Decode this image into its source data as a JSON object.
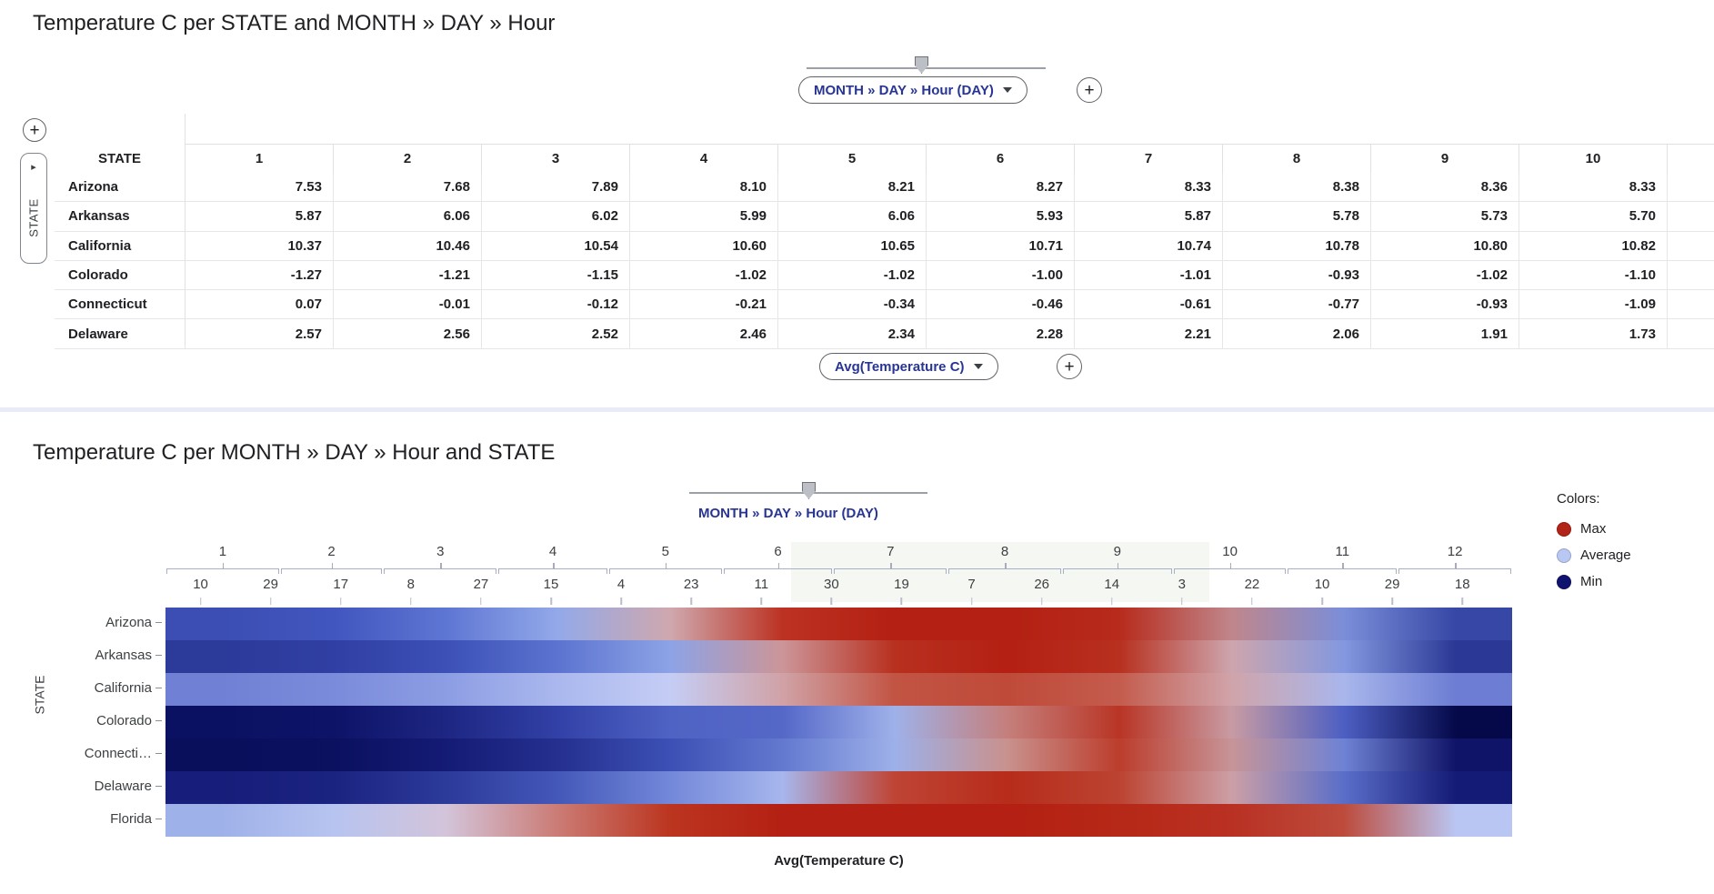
{
  "section1": {
    "title": "Temperature C per STATE and MONTH » DAY » Hour",
    "field_pill_label": "MONTH » DAY » Hour (DAY)",
    "add_column_field_label": "+",
    "measure_pill_label": "Avg(Temperature C)",
    "add_measure_label": "+",
    "add_row_field_label": "+",
    "row_field_tab": {
      "label": "STATE",
      "arrow": "▸"
    }
  },
  "section2": {
    "title": "Temperature C per MONTH » DAY » Hour and STATE",
    "drill_label": "MONTH » DAY » Hour (DAY)",
    "y_axis_title": "STATE",
    "x_axis_title": "Avg(Temperature C)",
    "y_labels": [
      "Arizona",
      "Arkansas",
      "California",
      "Colorado",
      "Connecti…",
      "Delaware",
      "Florida"
    ],
    "legend": {
      "title": "Colors:",
      "items": [
        {
          "label": "Max",
          "color": "#b22318"
        },
        {
          "label": "Average",
          "color": "#b9c7f3"
        },
        {
          "label": "Min",
          "color": "#11146e"
        }
      ]
    }
  },
  "chart_data": [
    {
      "type": "table",
      "title": "Temperature C per STATE and MONTH » DAY » Hour",
      "row_dimension": "STATE",
      "column_dimension": "MONTH » DAY » Hour (DAY)",
      "measure": "Avg(Temperature C)",
      "columns": [
        "1",
        "2",
        "3",
        "4",
        "5",
        "6",
        "7",
        "8",
        "9",
        "10"
      ],
      "rows": [
        {
          "state": "Arizona",
          "values": [
            7.53,
            7.68,
            7.89,
            8.1,
            8.21,
            8.27,
            8.33,
            8.38,
            8.36,
            8.33
          ]
        },
        {
          "state": "Arkansas",
          "values": [
            5.87,
            6.06,
            6.02,
            5.99,
            6.06,
            5.93,
            5.87,
            5.78,
            5.73,
            5.7
          ]
        },
        {
          "state": "California",
          "values": [
            10.37,
            10.46,
            10.54,
            10.6,
            10.65,
            10.71,
            10.74,
            10.78,
            10.8,
            10.82
          ]
        },
        {
          "state": "Colorado",
          "values": [
            -1.27,
            -1.21,
            -1.15,
            -1.02,
            -1.02,
            -1.0,
            -1.01,
            -0.93,
            -1.02,
            -1.1
          ]
        },
        {
          "state": "Connecticut",
          "values": [
            0.07,
            -0.01,
            -0.12,
            -0.21,
            -0.34,
            -0.46,
            -0.61,
            -0.77,
            -0.93,
            -1.09
          ]
        },
        {
          "state": "Delaware",
          "values": [
            2.57,
            2.56,
            2.52,
            2.46,
            2.34,
            2.28,
            2.21,
            2.06,
            1.91,
            1.73
          ]
        }
      ]
    },
    {
      "type": "heatmap",
      "title": "Temperature C per MONTH » DAY » Hour and STATE",
      "x_dimension": "MONTH » DAY » Hour (DAY)",
      "xlabel": "Avg(Temperature C)",
      "ylabel": "STATE",
      "months": [
        "1",
        "2",
        "3",
        "4",
        "5",
        "6",
        "7",
        "8",
        "9",
        "10",
        "11",
        "12"
      ],
      "day_ticks": [
        "10",
        "29",
        "17",
        "8",
        "27",
        "15",
        "4",
        "23",
        "11",
        "30",
        "19",
        "7",
        "26",
        "14",
        "3",
        "22",
        "10",
        "29",
        "18"
      ],
      "states": [
        "Arizona",
        "Arkansas",
        "California",
        "Colorado",
        "Connecticut",
        "Delaware",
        "Florida"
      ],
      "legend": {
        "Max": "#b22318",
        "Average": "#b9c7f3",
        "Min": "#11146e"
      },
      "row_month_colors": {
        "Arizona": [
          "#3c4eb3",
          "#4156bf",
          "#5e76d3",
          "#93a9e9",
          "#cfa8ae",
          "#bc3222",
          "#b42013",
          "#b42013",
          "#b72b1c",
          "#c0868b",
          "#7b8ed9",
          "#3647a5"
        ],
        "Arkansas": [
          "#2c3a9a",
          "#303fa3",
          "#3c50b6",
          "#5c74d0",
          "#8da3e6",
          "#cc9598",
          "#b8301f",
          "#b42013",
          "#b8301f",
          "#cda5ad",
          "#8398e0",
          "#2b3895"
        ],
        "California": [
          "#7081d5",
          "#7a8bdb",
          "#8d9de3",
          "#aab8ee",
          "#c5cdf5",
          "#d0a2a6",
          "#c25443",
          "#bf4a3a",
          "#c45c4d",
          "#d0a4aa",
          "#a9b6ec",
          "#6c7dd3"
        ],
        "Colorado": [
          "#0b1162",
          "#0d1367",
          "#1d2682",
          "#3241a7",
          "#4f63c4",
          "#5568c8",
          "#9fb1e9",
          "#c57f7c",
          "#b93525",
          "#c89ba3",
          "#4d5fc3",
          "#05094a"
        ],
        "Connecticut": [
          "#0a0f5c",
          "#0b105f",
          "#141b75",
          "#25308f",
          "#3c50b5",
          "#6379cf",
          "#9db0e9",
          "#c9918d",
          "#bc3d2c",
          "#c79498",
          "#6e82d4",
          "#101468"
        ],
        "Delaware": [
          "#161d7a",
          "#1b2380",
          "#2c3a9a",
          "#4458b9",
          "#7388d9",
          "#a7b6ed",
          "#bf4434",
          "#b72c1b",
          "#bc4331",
          "#cc9fa6",
          "#5a6ec9",
          "#141b76"
        ],
        "Florida": [
          "#9fb1e9",
          "#b7c4f0",
          "#d3c4da",
          "#cb7b74",
          "#bb351f",
          "#b42013",
          "#b42013",
          "#b42013",
          "#b62817",
          "#b93123",
          "#bd4b3c",
          "#b9c6f3"
        ]
      },
      "month_lengths": [
        31,
        28,
        31,
        30,
        31,
        30,
        31,
        31,
        30,
        31,
        30,
        31
      ]
    }
  ]
}
